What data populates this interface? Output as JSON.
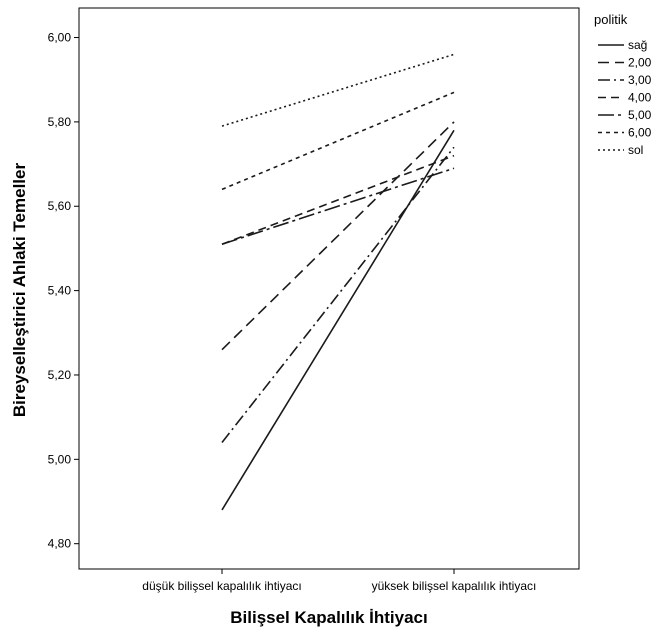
{
  "chart_data": {
    "type": "line",
    "xlabel": "Bilişsel Kapalılık İhtiyacı",
    "ylabel": "Bireyselleştirici Ahlaki Temeller",
    "categories": [
      "düşük bilişsel kapalılık ihtiyacı",
      "yüksek bilişsel kapalılık ihtiyacı"
    ],
    "ylim": [
      4.74,
      6.07
    ],
    "yticks": [
      "4,80",
      "5,00",
      "5,20",
      "5,40",
      "5,60",
      "5,80",
      "6,00"
    ],
    "ytick_values": [
      4.8,
      5.0,
      5.2,
      5.4,
      5.6,
      5.8,
      6.0
    ],
    "legend_title": "politik",
    "legend_position": "top-right, outside plot",
    "grid": false,
    "series": [
      {
        "name": "sağ",
        "values": [
          4.88,
          5.78
        ],
        "dash": "solid"
      },
      {
        "name": "2,00",
        "values": [
          5.26,
          5.8
        ],
        "dash": "long-dash"
      },
      {
        "name": "3,00",
        "values": [
          5.04,
          5.74
        ],
        "dash": "dash-dot"
      },
      {
        "name": "4,00",
        "values": [
          5.51,
          5.72
        ],
        "dash": "medium-dash"
      },
      {
        "name": "5,00",
        "values": [
          5.51,
          5.69
        ],
        "dash": "long-dash-dot"
      },
      {
        "name": "6,00",
        "values": [
          5.64,
          5.87
        ],
        "dash": "short-dash"
      },
      {
        "name": "sol",
        "values": [
          5.79,
          5.96
        ],
        "dash": "dotted"
      }
    ]
  }
}
